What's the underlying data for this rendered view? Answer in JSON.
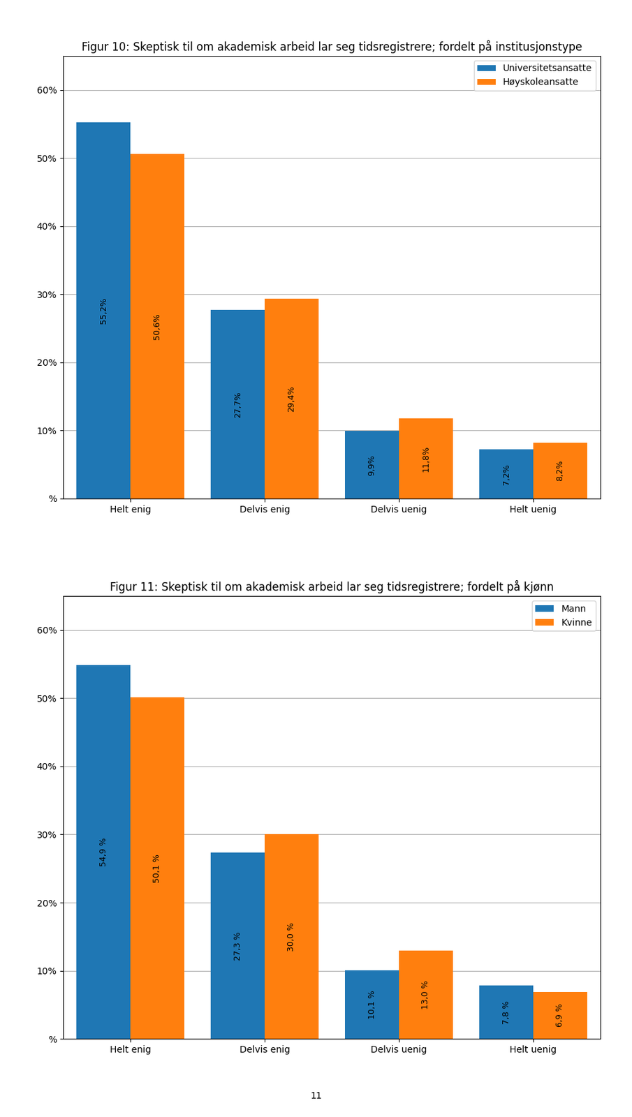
{
  "chart_data": [
    {
      "type": "bar",
      "title": "Figur 10: Skeptisk til om akademisk arbeid lar seg tidsregistrere; fordelt på institusjonstype",
      "categories": [
        "Helt enig",
        "Delvis enig",
        "Delvis uenig",
        "Helt uenig"
      ],
      "series": [
        {
          "name": "Universitetsansatte",
          "values": [
            55.2,
            27.7,
            9.9,
            7.2
          ],
          "value_labels": [
            "55,2%",
            "27,7%",
            "9,9%",
            "7,2%"
          ]
        },
        {
          "name": "Høyskoleansatte",
          "values": [
            50.6,
            29.4,
            11.8,
            8.2
          ],
          "value_labels": [
            "50,6%",
            "29,4%",
            "11,8%",
            "8,2%"
          ]
        }
      ],
      "ylim": [
        0,
        65
      ],
      "yticks": [
        {
          "value": 0,
          "label": "%"
        },
        {
          "value": 10,
          "label": "10%"
        },
        {
          "value": 20,
          "label": "20%"
        },
        {
          "value": 30,
          "label": "30%"
        },
        {
          "value": 40,
          "label": "40%"
        },
        {
          "value": 50,
          "label": "50%"
        },
        {
          "value": 60,
          "label": "60%"
        }
      ],
      "grid": true,
      "legend": "upper right",
      "data_labels": true
    },
    {
      "type": "bar",
      "title": "Figur 11: Skeptisk til om akademisk arbeid lar seg tidsregistrere; fordelt på kjønn",
      "categories": [
        "Helt enig",
        "Delvis enig",
        "Delvis uenig",
        "Helt uenig"
      ],
      "series": [
        {
          "name": "Mann",
          "values": [
            54.9,
            27.3,
            10.1,
            7.8
          ],
          "value_labels": [
            "54,9 %",
            "27,3 %",
            "10,1 %",
            "7,8 %"
          ]
        },
        {
          "name": "Kvinne",
          "values": [
            50.1,
            30.0,
            13.0,
            6.9
          ],
          "value_labels": [
            "50,1 %",
            "30,0 %",
            "13,0 %",
            "6,9 %"
          ]
        }
      ],
      "ylim": [
        0,
        65
      ],
      "yticks": [
        {
          "value": 0,
          "label": "%"
        },
        {
          "value": 10,
          "label": "10%"
        },
        {
          "value": 20,
          "label": "20%"
        },
        {
          "value": 30,
          "label": "30%"
        },
        {
          "value": 40,
          "label": "40%"
        },
        {
          "value": 50,
          "label": "50%"
        },
        {
          "value": 60,
          "label": "60%"
        }
      ],
      "grid": true,
      "legend": "upper right",
      "data_labels": true,
      "annotations": [
        "11"
      ]
    }
  ]
}
